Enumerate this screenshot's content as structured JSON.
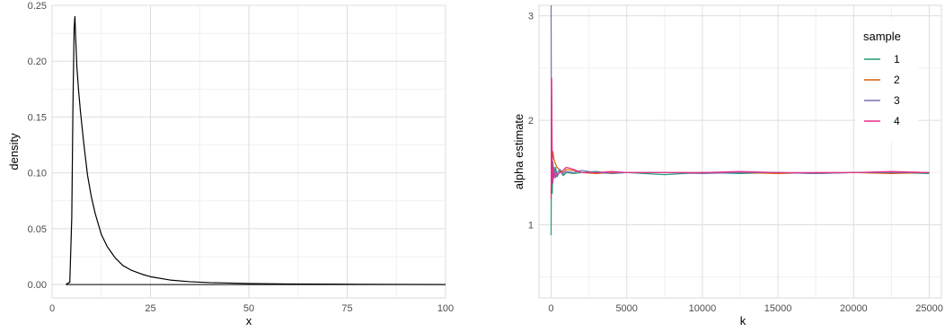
{
  "chart_data": [
    {
      "type": "line",
      "xlabel": "x",
      "ylabel": "density",
      "xlim": [
        0,
        100
      ],
      "ylim": [
        -0.012,
        0.25
      ],
      "x_ticks": [
        0,
        25,
        50,
        75,
        100
      ],
      "y_ticks": [
        0.0,
        0.05,
        0.1,
        0.15,
        0.2,
        0.25
      ],
      "x_tick_labels": [
        "0",
        "25",
        "50",
        "75",
        "100"
      ],
      "y_tick_labels": [
        "0.00",
        "0.05",
        "0.10",
        "0.15",
        "0.20",
        "0.25"
      ],
      "grid": true,
      "series": [
        {
          "color": "#000000",
          "x": [
            3.5,
            4.5,
            5.0,
            5.3,
            5.6,
            5.8,
            6.0,
            6.3,
            6.7,
            7.2,
            8.0,
            9.0,
            10.0,
            11.0,
            12.5,
            14.0,
            16.0,
            18.0,
            20.0,
            23.0,
            25.0,
            30.0,
            35.0,
            40.0,
            50.0,
            60.0,
            78.0,
            100.0
          ],
          "y": [
            0.0,
            0.002,
            0.06,
            0.16,
            0.23,
            0.24,
            0.22,
            0.195,
            0.175,
            0.155,
            0.128,
            0.098,
            0.078,
            0.063,
            0.045,
            0.034,
            0.024,
            0.017,
            0.013,
            0.009,
            0.007,
            0.004,
            0.0025,
            0.0017,
            0.0009,
            0.0005,
            0.0002,
            0.0
          ]
        }
      ]
    },
    {
      "type": "line",
      "xlabel": "k",
      "ylabel": "alpha estimate",
      "xlim": [
        -800,
        25800
      ],
      "ylim": [
        0.3,
        3.1
      ],
      "x_ticks": [
        0,
        5000,
        10000,
        15000,
        20000,
        25000
      ],
      "y_ticks": [
        1,
        2,
        3
      ],
      "x_tick_labels": [
        "0",
        "5000",
        "10000",
        "15000",
        "20000",
        "25000"
      ],
      "y_tick_labels": [
        "1",
        "2",
        "3"
      ],
      "grid": true,
      "legend": {
        "title": "sample",
        "placement": "top-right"
      },
      "series": [
        {
          "name": "1",
          "color": "#1b9e77",
          "k": [
            1,
            40,
            80,
            120,
            200,
            300,
            400,
            600,
            800,
            1000,
            1500,
            2000,
            3000,
            4000,
            5000,
            7500,
            10000,
            12500,
            15000,
            17500,
            20000,
            22500,
            25000
          ],
          "alpha": [
            0.9,
            2.2,
            1.3,
            1.6,
            1.45,
            1.55,
            1.46,
            1.52,
            1.47,
            1.5,
            1.49,
            1.5,
            1.51,
            1.49,
            1.5,
            1.48,
            1.5,
            1.49,
            1.5,
            1.49,
            1.5,
            1.5,
            1.49
          ]
        },
        {
          "name": "2",
          "color": "#d95f02",
          "k": [
            1,
            40,
            80,
            120,
            200,
            300,
            400,
            600,
            800,
            1000,
            1500,
            2000,
            3000,
            4000,
            5000,
            7500,
            10000,
            12500,
            15000,
            17500,
            20000,
            22500,
            25000
          ],
          "alpha": [
            1.3,
            1.75,
            1.6,
            1.7,
            1.62,
            1.58,
            1.55,
            1.52,
            1.5,
            1.53,
            1.52,
            1.5,
            1.49,
            1.5,
            1.5,
            1.5,
            1.5,
            1.5,
            1.49,
            1.5,
            1.5,
            1.49,
            1.5
          ]
        },
        {
          "name": "3",
          "color": "#7570b3",
          "k": [
            1,
            20,
            40,
            80,
            120,
            200,
            300,
            400,
            600,
            800,
            1000,
            1500,
            2000,
            3000,
            4000,
            5000,
            7500,
            10000,
            12500,
            15000,
            17500,
            20000,
            22500,
            25000
          ],
          "alpha": [
            3.1,
            2.0,
            1.5,
            1.65,
            1.4,
            1.55,
            1.45,
            1.5,
            1.53,
            1.48,
            1.51,
            1.5,
            1.52,
            1.5,
            1.49,
            1.5,
            1.5,
            1.49,
            1.5,
            1.5,
            1.49,
            1.5,
            1.5,
            1.5
          ]
        },
        {
          "name": "4",
          "color": "#e7298a",
          "k": [
            1,
            40,
            80,
            120,
            200,
            300,
            400,
            600,
            800,
            1000,
            1500,
            2000,
            3000,
            4000,
            5000,
            7500,
            10000,
            12500,
            15000,
            17500,
            20000,
            22500,
            25000
          ],
          "alpha": [
            1.25,
            2.4,
            1.4,
            1.55,
            1.45,
            1.5,
            1.48,
            1.5,
            1.52,
            1.55,
            1.53,
            1.5,
            1.5,
            1.51,
            1.5,
            1.5,
            1.5,
            1.51,
            1.5,
            1.5,
            1.5,
            1.51,
            1.5
          ]
        }
      ]
    }
  ]
}
